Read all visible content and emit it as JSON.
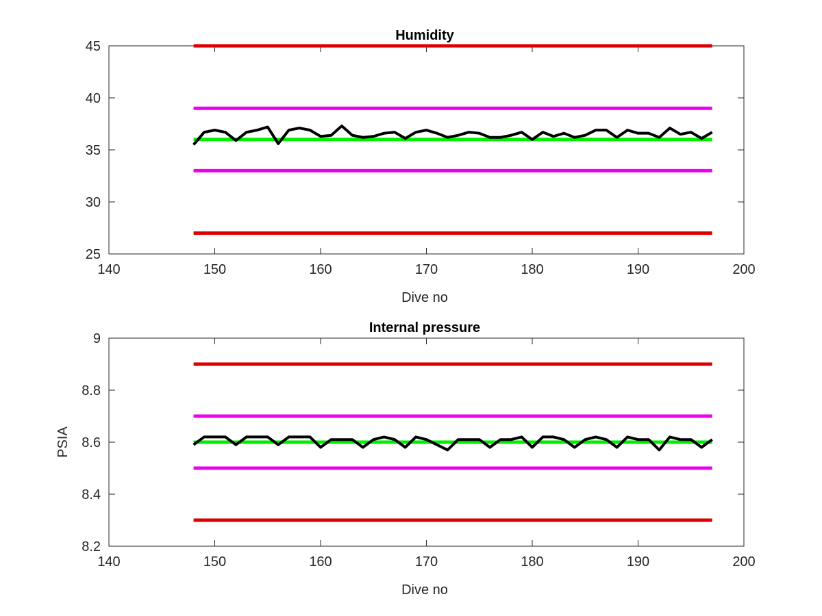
{
  "chart_data": [
    {
      "type": "line",
      "title": "Humidity",
      "xlabel": "Dive no",
      "ylabel": "",
      "xlim": [
        140,
        200
      ],
      "ylim": [
        25,
        45
      ],
      "xticks": [
        "140",
        "150",
        "160",
        "170",
        "180",
        "190",
        "200"
      ],
      "yticks": [
        "25",
        "30",
        "35",
        "40",
        "45"
      ],
      "grid": false,
      "x": [
        148,
        149,
        150,
        151,
        152,
        153,
        154,
        155,
        156,
        157,
        158,
        159,
        160,
        161,
        162,
        163,
        164,
        165,
        166,
        167,
        168,
        169,
        170,
        171,
        172,
        173,
        174,
        175,
        176,
        177,
        178,
        179,
        180,
        181,
        182,
        183,
        184,
        185,
        186,
        187,
        188,
        189,
        190,
        191,
        192,
        193,
        194,
        195,
        196,
        197
      ],
      "series": [
        {
          "name": "",
          "color": "#000000",
          "role": "measurement",
          "values": [
            35.5,
            36.7,
            36.9,
            36.7,
            35.9,
            36.7,
            36.9,
            37.2,
            35.6,
            36.9,
            37.1,
            36.9,
            36.3,
            36.4,
            37.3,
            36.4,
            36.2,
            36.3,
            36.6,
            36.7,
            36.1,
            36.7,
            36.9,
            36.6,
            36.2,
            36.4,
            36.7,
            36.6,
            36.2,
            36.2,
            36.4,
            36.7,
            36.0,
            36.7,
            36.3,
            36.6,
            36.2,
            36.4,
            36.9,
            36.9,
            36.2,
            36.9,
            36.6,
            36.6,
            36.2,
            37.1,
            36.5,
            36.7,
            36.1,
            36.7
          ]
        },
        {
          "name": "",
          "color": "#00ee00",
          "role": "nominal",
          "x": [
            148,
            197
          ],
          "values": [
            36,
            36
          ]
        },
        {
          "name": "",
          "color": "#ee00ee",
          "role": "upper-warning",
          "x": [
            148,
            197
          ],
          "values": [
            39,
            39
          ]
        },
        {
          "name": "",
          "color": "#ee00ee",
          "role": "lower-warning",
          "x": [
            148,
            197
          ],
          "values": [
            33,
            33
          ]
        },
        {
          "name": "",
          "color": "#dd0000",
          "role": "upper-limit",
          "x": [
            148,
            197
          ],
          "values": [
            45,
            45
          ]
        },
        {
          "name": "",
          "color": "#dd0000",
          "role": "lower-limit",
          "x": [
            148,
            197
          ],
          "values": [
            27,
            27
          ]
        }
      ]
    },
    {
      "type": "line",
      "title": "Internal pressure",
      "xlabel": "Dive no",
      "ylabel": "PSIA",
      "xlim": [
        140,
        200
      ],
      "ylim": [
        8.2,
        9
      ],
      "xticks": [
        "140",
        "150",
        "160",
        "170",
        "180",
        "190",
        "200"
      ],
      "yticks": [
        "8.2",
        "8.4",
        "8.6",
        "8.8",
        "9"
      ],
      "grid": false,
      "x": [
        148,
        149,
        150,
        151,
        152,
        153,
        154,
        155,
        156,
        157,
        158,
        159,
        160,
        161,
        162,
        163,
        164,
        165,
        166,
        167,
        168,
        169,
        170,
        171,
        172,
        173,
        174,
        175,
        176,
        177,
        178,
        179,
        180,
        181,
        182,
        183,
        184,
        185,
        186,
        187,
        188,
        189,
        190,
        191,
        192,
        193,
        194,
        195,
        196,
        197
      ],
      "series": [
        {
          "name": "",
          "color": "#000000",
          "role": "measurement",
          "values": [
            8.59,
            8.62,
            8.62,
            8.62,
            8.59,
            8.62,
            8.62,
            8.62,
            8.59,
            8.62,
            8.62,
            8.62,
            8.58,
            8.61,
            8.61,
            8.61,
            8.58,
            8.61,
            8.62,
            8.61,
            8.58,
            8.62,
            8.61,
            8.59,
            8.57,
            8.61,
            8.61,
            8.61,
            8.58,
            8.61,
            8.61,
            8.62,
            8.58,
            8.62,
            8.62,
            8.61,
            8.58,
            8.61,
            8.62,
            8.61,
            8.58,
            8.62,
            8.61,
            8.61,
            8.57,
            8.62,
            8.61,
            8.61,
            8.58,
            8.61
          ]
        },
        {
          "name": "",
          "color": "#00ee00",
          "role": "nominal",
          "x": [
            148,
            197
          ],
          "values": [
            8.6,
            8.6
          ]
        },
        {
          "name": "",
          "color": "#ee00ee",
          "role": "upper-warning",
          "x": [
            148,
            197
          ],
          "values": [
            8.7,
            8.7
          ]
        },
        {
          "name": "",
          "color": "#ee00ee",
          "role": "lower-warning",
          "x": [
            148,
            197
          ],
          "values": [
            8.5,
            8.5
          ]
        },
        {
          "name": "",
          "color": "#dd0000",
          "role": "upper-limit",
          "x": [
            148,
            197
          ],
          "values": [
            8.9,
            8.9
          ]
        },
        {
          "name": "",
          "color": "#dd0000",
          "role": "lower-limit",
          "x": [
            148,
            197
          ],
          "values": [
            8.3,
            8.3
          ]
        }
      ]
    }
  ]
}
